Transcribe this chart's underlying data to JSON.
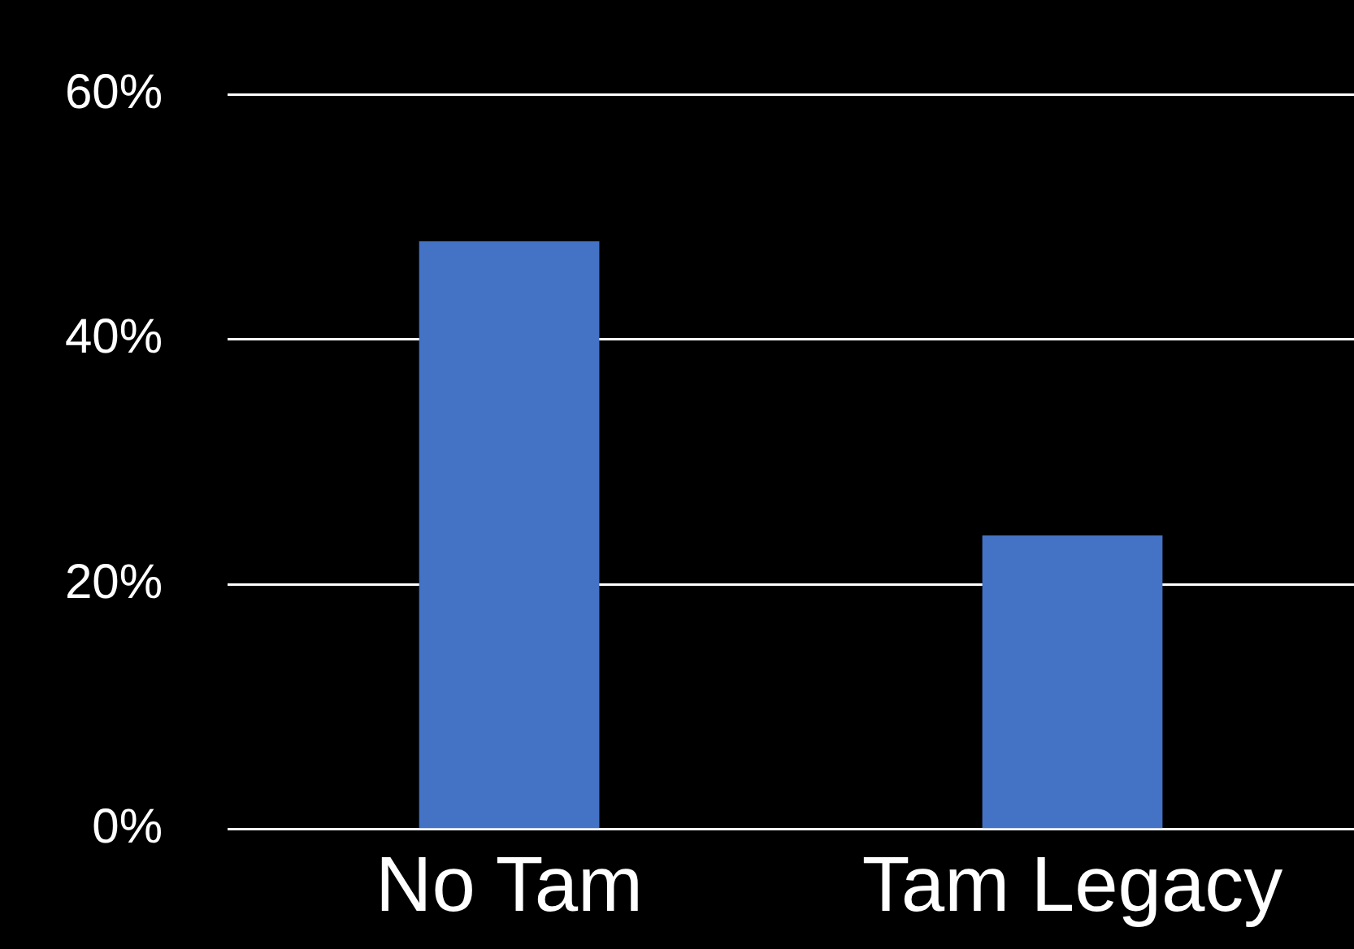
{
  "chart_data": {
    "type": "bar",
    "categories": [
      "No Tam",
      "Tam Legacy"
    ],
    "values": [
      48,
      24
    ],
    "color": "#4472c4",
    "ylim": [
      0,
      60
    ],
    "yticks": [
      {
        "value": 0,
        "label": "0%"
      },
      {
        "value": 20,
        "label": "20%"
      },
      {
        "value": 40,
        "label": "40%"
      },
      {
        "value": 60,
        "label": "60%"
      }
    ],
    "grid": "y",
    "legend": false
  }
}
